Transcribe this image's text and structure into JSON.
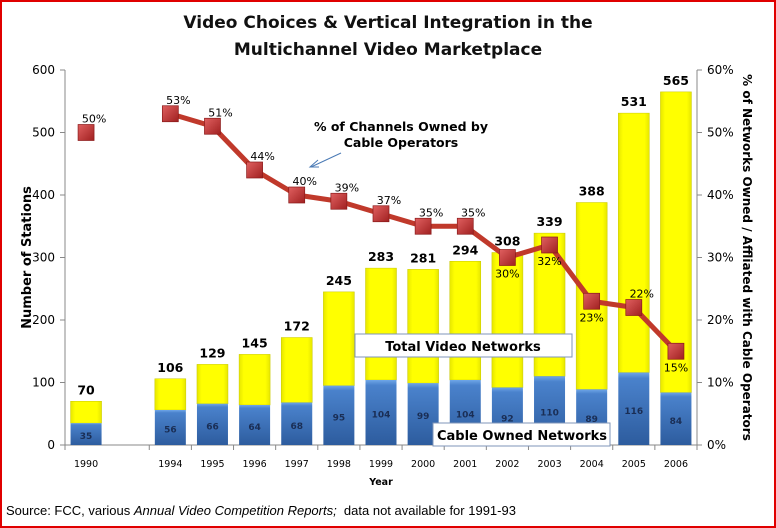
{
  "chart_data": {
    "type": "bar",
    "title_lines": [
      "Video Choices & Vertical Integration in the",
      "Multichannel Video Marketplace"
    ],
    "xlabel": "Year",
    "ylabel": "Number of Stations",
    "y2label": "% of Networks Owned / Affliated with Cable Operators",
    "ylim": [
      0,
      600
    ],
    "yticks": [
      "0",
      "100",
      "200",
      "300",
      "400",
      "500",
      "600"
    ],
    "y2lim": [
      0,
      60
    ],
    "y2ticks": [
      "0%",
      "10%",
      "20%",
      "30%",
      "40%",
      "50%",
      "60%"
    ],
    "categories": [
      "1990",
      "",
      "1994",
      "1995",
      "1996",
      "1997",
      "1998",
      "1999",
      "2000",
      "2001",
      "2002",
      "2003",
      "2004",
      "2005",
      "2006"
    ],
    "series": [
      {
        "name": "Cable Owned Networks",
        "color": "#3a6fb5",
        "values": [
          35,
          null,
          56,
          66,
          64,
          68,
          95,
          104,
          99,
          104,
          92,
          110,
          89,
          116,
          84
        ]
      },
      {
        "name": "Total Video Networks",
        "color": "#ffff00",
        "values": [
          70,
          null,
          106,
          129,
          145,
          172,
          245,
          283,
          281,
          294,
          308,
          339,
          388,
          531,
          565
        ]
      },
      {
        "name": "% of Channels Owned by Cable Operators",
        "color": "#c0392b",
        "axis": "right",
        "values": [
          50,
          null,
          53,
          51,
          44,
          40,
          39,
          37,
          35,
          35,
          30,
          32,
          23,
          22,
          15
        ],
        "labels": [
          "50%",
          "",
          "53%",
          "51%",
          "44%",
          "40%",
          "39%",
          "37%",
          "35%",
          "35%",
          "30%",
          "32%",
          "23%",
          "22%",
          "15%"
        ],
        "label_side": [
          "above",
          "",
          "above",
          "above",
          "above",
          "above",
          "above",
          "above",
          "above",
          "above",
          "below",
          "below",
          "below",
          "above",
          "below"
        ]
      }
    ],
    "annotations": {
      "line_note": [
        "% of Channels Owned by",
        "Cable Operators"
      ],
      "total_box": "Total Video Networks",
      "cable_box": "Cable Owned Networks"
    }
  },
  "source": {
    "prefix": "Source: FCC, various ",
    "italic": "Annual Video Competition Reports;",
    "suffix": "  data not available for 1991-93"
  }
}
